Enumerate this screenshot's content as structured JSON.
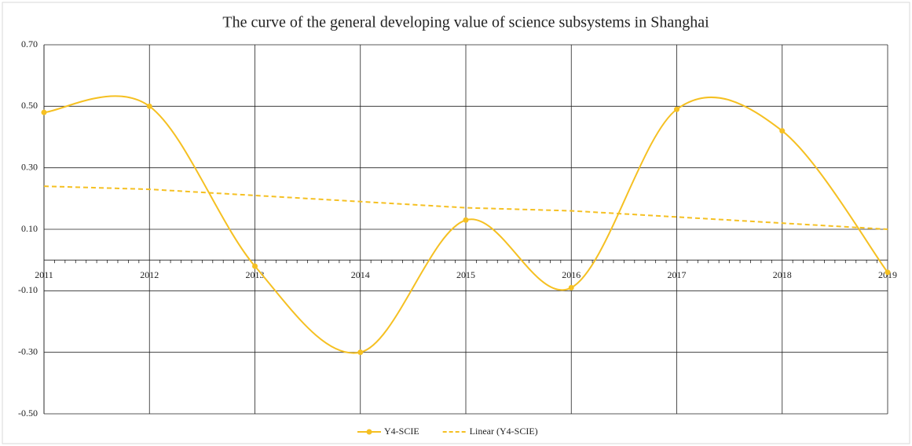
{
  "chart_data": {
    "type": "line",
    "title": "The curve of the general developing value of science subsystems in Shanghai",
    "categories": [
      "2011",
      "2012",
      "2013",
      "2014",
      "2015",
      "2016",
      "2017",
      "2018",
      "2019"
    ],
    "series": [
      {
        "name": "Y4-SCIE",
        "color": "#f5c022",
        "smooth": true,
        "marker": true,
        "values": [
          0.48,
          0.5,
          -0.02,
          -0.3,
          0.13,
          -0.09,
          0.49,
          0.42,
          -0.04
        ]
      },
      {
        "name": "Linear (Y4-SCIE)",
        "color": "#f5c022",
        "dashed": true,
        "values": [
          0.24,
          0.23,
          0.21,
          0.19,
          0.17,
          0.16,
          0.14,
          0.12,
          0.1
        ]
      }
    ],
    "ylim": [
      -0.5,
      0.7
    ],
    "yticks": [
      {
        "value": -0.5,
        "label": "-0.50"
      },
      {
        "value": -0.3,
        "label": "-0.30"
      },
      {
        "value": -0.1,
        "label": "-0.10"
      },
      {
        "value": 0.1,
        "label": "0.10"
      },
      {
        "value": 0.3,
        "label": "0.30"
      },
      {
        "value": 0.5,
        "label": "0.50"
      },
      {
        "value": 0.7,
        "label": "0.70"
      }
    ],
    "grid": true,
    "legend": "bottom"
  }
}
